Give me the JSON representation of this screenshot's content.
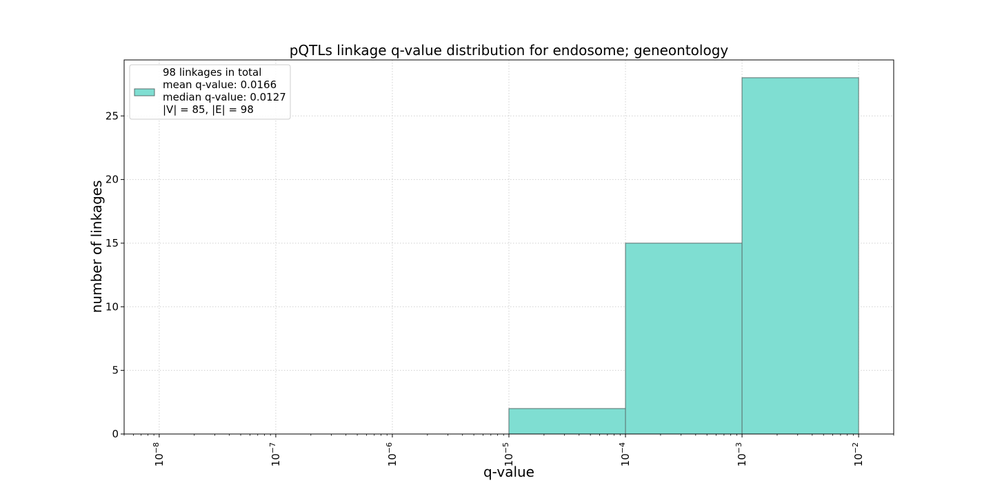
{
  "chart_data": {
    "type": "bar",
    "title": "pQTLs linkage q-value distribution for endosome; geneontology",
    "xlabel": "q-value",
    "ylabel": "number of linkages",
    "x_scale": "log",
    "xlim": [
      5e-09,
      0.02
    ],
    "ylim": [
      0,
      29.4
    ],
    "x_ticks": [
      {
        "value": 1e-08,
        "base": "10",
        "exp": "−8"
      },
      {
        "value": 1e-07,
        "base": "10",
        "exp": "−7"
      },
      {
        "value": 1e-06,
        "base": "10",
        "exp": "−6"
      },
      {
        "value": 1e-05,
        "base": "10",
        "exp": "−5"
      },
      {
        "value": 0.0001,
        "base": "10",
        "exp": "−4"
      },
      {
        "value": 0.001,
        "base": "10",
        "exp": "−3"
      },
      {
        "value": 0.01,
        "base": "10",
        "exp": "−2"
      }
    ],
    "y_ticks": [
      {
        "value": 0,
        "label": "0"
      },
      {
        "value": 5,
        "label": "5"
      },
      {
        "value": 10,
        "label": "10"
      },
      {
        "value": 15,
        "label": "15"
      },
      {
        "value": 20,
        "label": "20"
      },
      {
        "value": 25,
        "label": "25"
      }
    ],
    "bins": [
      {
        "x0": 1e-05,
        "x1": 0.0001,
        "count": 2
      },
      {
        "x0": 0.0001,
        "x1": 0.001,
        "count": 15
      },
      {
        "x0": 0.001,
        "x1": 0.01,
        "count": 28
      }
    ],
    "grid": true,
    "bar_color": "#7fded2",
    "bar_edge_color": "#5a6e6c",
    "legend": {
      "placement": "upper-left",
      "lines": [
        "98 linkages in total",
        "mean q-value: 0.0166",
        "median q-value: 0.0127",
        "|V| = 85, |E| = 98"
      ]
    }
  }
}
